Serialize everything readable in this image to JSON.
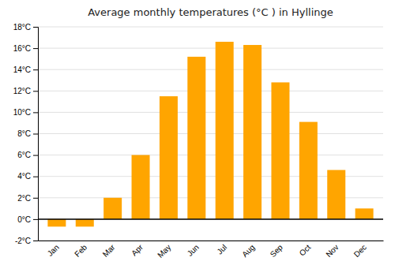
{
  "chart_data": {
    "type": "bar",
    "title": "Average monthly temperatures (°C ) in Hyllinge",
    "categories": [
      "Jan",
      "Feb",
      "Mar",
      "Apr",
      "May",
      "Jun",
      "Jul",
      "Aug",
      "Sep",
      "Oct",
      "Nov",
      "Dec"
    ],
    "values": [
      -0.7,
      -0.7,
      2.0,
      6.0,
      11.5,
      15.2,
      16.6,
      16.3,
      12.8,
      9.1,
      4.6,
      1.0
    ],
    "color": "#FFA500",
    "ylim": [
      -2,
      18
    ],
    "yticks": [
      {
        "value": -2,
        "label": "-2°C"
      },
      {
        "value": 0,
        "label": "0°C"
      },
      {
        "value": 2,
        "label": "2°C"
      },
      {
        "value": 4,
        "label": "4°C"
      },
      {
        "value": 6,
        "label": "6°C"
      },
      {
        "value": 8,
        "label": "8°C"
      },
      {
        "value": 10,
        "label": "10°C"
      },
      {
        "value": 12,
        "label": "12°C"
      },
      {
        "value": 14,
        "label": "14°C"
      },
      {
        "value": 16,
        "label": "16°C"
      },
      {
        "value": 18,
        "label": "18°C"
      }
    ],
    "grid": true
  }
}
